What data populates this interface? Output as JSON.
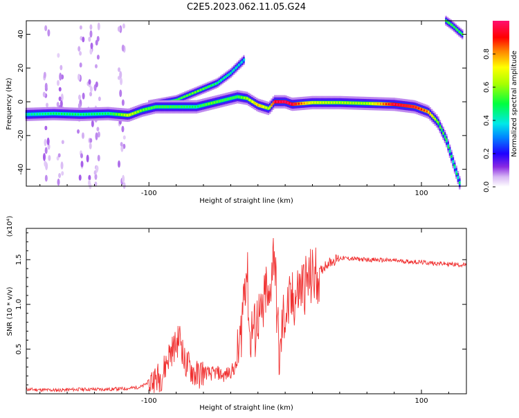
{
  "title": "C2E5.2023.062.11.05.G24",
  "chart_data": [
    {
      "type": "heatmap",
      "name": "spectrogram",
      "xlabel": "Height of straight line (km)",
      "ylabel": "Frequency (Hz)",
      "xlim": [
        -190,
        133
      ],
      "ylim": [
        -50,
        48
      ],
      "xticks": [
        -100,
        100
      ],
      "yticks": [
        -40,
        -20,
        0,
        20,
        40
      ],
      "colorbar": {
        "label": "Normalized spectral amplitude",
        "range": [
          0,
          1
        ],
        "ticks": [
          "0.0",
          "0.2",
          "0.4",
          "0.6",
          "0.8"
        ],
        "tick_values": [
          0.0,
          0.2,
          0.4,
          0.6,
          0.8
        ]
      },
      "ridge": [
        {
          "x": -190,
          "y": -7.5,
          "a": 0.35
        },
        {
          "x": -170,
          "y": -7,
          "a": 0.4
        },
        {
          "x": -150,
          "y": -7.5,
          "a": 0.4
        },
        {
          "x": -130,
          "y": -7,
          "a": 0.4
        },
        {
          "x": -115,
          "y": -8,
          "a": 0.6
        },
        {
          "x": -105,
          "y": -5,
          "a": 0.5
        },
        {
          "x": -95,
          "y": -3,
          "a": 0.45
        },
        {
          "x": -80,
          "y": -3,
          "a": 0.45
        },
        {
          "x": -65,
          "y": -3,
          "a": 0.4
        },
        {
          "x": -55,
          "y": -1,
          "a": 0.5
        },
        {
          "x": -45,
          "y": 1,
          "a": 0.45
        },
        {
          "x": -35,
          "y": 3,
          "a": 0.45
        },
        {
          "x": -28,
          "y": 2,
          "a": 0.55
        },
        {
          "x": -20,
          "y": -2,
          "a": 0.7
        },
        {
          "x": -12,
          "y": -4,
          "a": 0.55
        },
        {
          "x": -8,
          "y": 0,
          "a": 0.9
        },
        {
          "x": 0,
          "y": 0,
          "a": 0.95
        },
        {
          "x": 5,
          "y": -1.5,
          "a": 0.9
        },
        {
          "x": 20,
          "y": -0.5,
          "a": 0.6
        },
        {
          "x": 40,
          "y": -0.5,
          "a": 0.55
        },
        {
          "x": 60,
          "y": -1,
          "a": 0.55
        },
        {
          "x": 80,
          "y": -1.5,
          "a": 0.9
        },
        {
          "x": 95,
          "y": -3,
          "a": 0.85
        },
        {
          "x": 105,
          "y": -6,
          "a": 0.75
        },
        {
          "x": 112,
          "y": -12,
          "a": 0.5
        },
        {
          "x": 118,
          "y": -22,
          "a": 0.45
        },
        {
          "x": 123,
          "y": -35,
          "a": 0.4
        },
        {
          "x": 128,
          "y": -48,
          "a": 0.4
        }
      ],
      "upper_branch": [
        {
          "x": -100,
          "y": -2,
          "a": 0.4
        },
        {
          "x": -80,
          "y": 1,
          "a": 0.45
        },
        {
          "x": -65,
          "y": 6,
          "a": 0.5
        },
        {
          "x": -50,
          "y": 11,
          "a": 0.4
        },
        {
          "x": -40,
          "y": 17,
          "a": 0.35
        },
        {
          "x": -30,
          "y": 25,
          "a": 0.3
        }
      ],
      "wrap_branch": [
        {
          "x": 118,
          "y": 48,
          "a": 0.45
        },
        {
          "x": 123,
          "y": 45,
          "a": 0.45
        },
        {
          "x": 127,
          "y": 42,
          "a": 0.45
        },
        {
          "x": 130,
          "y": 40,
          "a": 0.45
        }
      ]
    },
    {
      "type": "line",
      "name": "snr",
      "xlabel": "Height of straight line (km)",
      "ylabel": "SNR (10 * v/v)",
      "y_multiplier": "(x10⁴)",
      "xlim": [
        -190,
        133
      ],
      "ylim": [
        0,
        1.85
      ],
      "xticks": [
        -100,
        100
      ],
      "yticks": [
        0.5,
        1.0,
        1.5
      ],
      "ytick_labels": [
        "0.5",
        "1.0",
        "1.5"
      ],
      "color": "#f03030",
      "x": [
        -190,
        -170,
        -150,
        -130,
        -115,
        -105,
        -100,
        -95,
        -90,
        -85,
        -80,
        -77,
        -74,
        -70,
        -65,
        -60,
        -55,
        -50,
        -45,
        -40,
        -36,
        -33,
        -30,
        -28,
        -26,
        -24,
        -22,
        -20,
        -18,
        -16,
        -14,
        -12,
        -10,
        -8,
        -6,
        -4,
        -2,
        0,
        4,
        8,
        12,
        16,
        20,
        25,
        30,
        40,
        60,
        80,
        100,
        120,
        133
      ],
      "y": [
        0.05,
        0.04,
        0.05,
        0.05,
        0.06,
        0.08,
        0.14,
        0.16,
        0.22,
        0.45,
        0.55,
        0.65,
        0.35,
        0.3,
        0.2,
        0.25,
        0.22,
        0.24,
        0.2,
        0.25,
        0.3,
        0.55,
        1.25,
        1.4,
        0.6,
        0.75,
        0.7,
        0.9,
        0.8,
        0.9,
        1.2,
        0.9,
        1.4,
        1.65,
        0.9,
        0.3,
        0.8,
        0.9,
        1.0,
        1.1,
        1.2,
        1.25,
        1.3,
        1.35,
        1.45,
        1.52,
        1.5,
        1.49,
        1.47,
        1.45,
        1.44
      ]
    }
  ]
}
